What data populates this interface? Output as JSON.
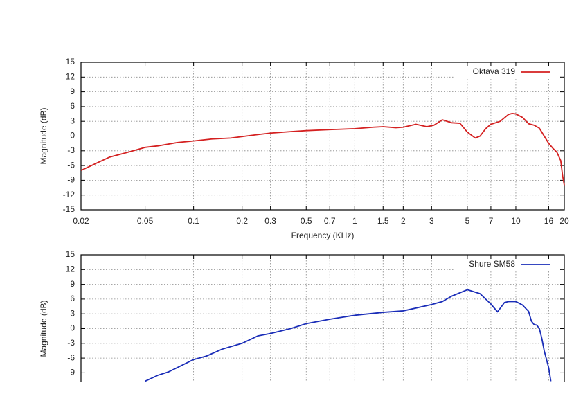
{
  "chart_data": [
    {
      "type": "line",
      "ylabel": "Magnitude (dB)",
      "xlabel": "Frequency (KHz)",
      "log_x": true,
      "grid": true,
      "legend": "upper right",
      "xlim": [
        0.02,
        20
      ],
      "ylim": [
        -15,
        15
      ],
      "xticks": [
        0.02,
        0.05,
        0.1,
        0.2,
        0.3,
        0.5,
        0.7,
        1,
        1.5,
        2,
        3,
        5,
        7,
        10,
        16,
        20
      ],
      "yticks": [
        15,
        12,
        9,
        6,
        3,
        0,
        -3,
        -6,
        -9,
        -12,
        -15
      ],
      "series": [
        {
          "name": "Oktava 319",
          "color": "#d42020",
          "x": [
            0.02,
            0.025,
            0.03,
            0.04,
            0.05,
            0.06,
            0.08,
            0.1,
            0.13,
            0.17,
            0.2,
            0.25,
            0.3,
            0.4,
            0.5,
            0.7,
            1,
            1.3,
            1.5,
            1.8,
            2,
            2.4,
            2.8,
            3.1,
            3.5,
            4,
            4.5,
            5,
            5.6,
            6,
            6.5,
            7,
            8,
            9,
            9.5,
            10,
            11,
            12,
            13,
            14,
            15,
            16,
            17,
            18,
            19,
            19.5,
            20
          ],
          "values": [
            -7,
            -5.5,
            -4.3,
            -3.2,
            -2.3,
            -2,
            -1.3,
            -1,
            -0.6,
            -0.4,
            -0.1,
            0.3,
            0.6,
            0.9,
            1.1,
            1.3,
            1.5,
            1.8,
            1.9,
            1.7,
            1.8,
            2.4,
            1.9,
            2.2,
            3.3,
            2.7,
            2.6,
            0.8,
            -0.4,
            0,
            1.5,
            2.4,
            3,
            4.4,
            4.6,
            4.5,
            3.8,
            2.5,
            2.2,
            1.6,
            0,
            -1.5,
            -2.5,
            -3.3,
            -5,
            -8,
            -10
          ]
        }
      ]
    },
    {
      "type": "line",
      "ylabel": "Magnitude (dB)",
      "log_x": true,
      "grid": true,
      "legend": "upper right",
      "xlim": [
        0.02,
        20
      ],
      "ylim": [
        -15,
        15
      ],
      "yticks": [
        15,
        12,
        9,
        6,
        3,
        0,
        -3,
        -6,
        -9
      ],
      "series": [
        {
          "name": "Shure SM58",
          "color": "#1a2db8",
          "x": [
            0.05,
            0.06,
            0.07,
            0.1,
            0.12,
            0.15,
            0.2,
            0.25,
            0.3,
            0.4,
            0.5,
            0.7,
            1,
            1.5,
            2,
            3,
            3.5,
            4,
            5,
            6,
            7,
            7.7,
            8.5,
            9,
            10,
            11,
            12,
            12.5,
            13,
            13.5,
            14,
            14.5,
            15,
            16,
            16.5
          ],
          "values": [
            -10.7,
            -9.5,
            -8.8,
            -6.3,
            -5.6,
            -4.2,
            -3,
            -1.5,
            -1,
            0,
            1,
            1.9,
            2.7,
            3.3,
            3.6,
            4.9,
            5.5,
            6.6,
            7.9,
            7.1,
            5,
            3.4,
            5.3,
            5.5,
            5.5,
            4.8,
            3.5,
            1.5,
            0.8,
            0.7,
            0,
            -2,
            -4.5,
            -8,
            -10.7
          ]
        }
      ]
    }
  ]
}
